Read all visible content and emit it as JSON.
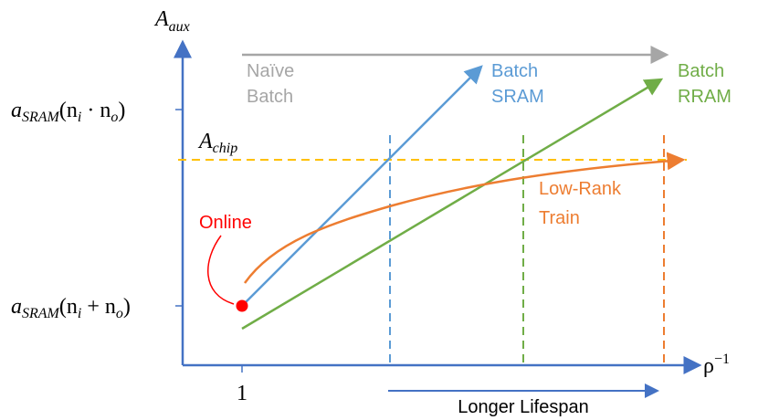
{
  "axes": {
    "y_label": {
      "parts": [
        "A",
        "aux"
      ]
    },
    "x_label": {
      "parts": [
        "ρ",
        "−1"
      ]
    },
    "x_tick": "1",
    "y_ticks": [
      {
        "parts": [
          "a",
          "SRAM",
          "(n",
          "i",
          " · n",
          "o",
          ")"
        ]
      },
      {
        "parts": [
          "a",
          "SRAM",
          "(n",
          "i",
          " + n",
          "o",
          ")"
        ]
      }
    ],
    "chip_label": {
      "parts": [
        "A",
        "chip"
      ]
    }
  },
  "curves": {
    "naive_batch": [
      "Naïve",
      "Batch"
    ],
    "batch_sram": [
      "Batch",
      "SRAM"
    ],
    "batch_rram": [
      "Batch",
      "RRAM"
    ],
    "low_rank": [
      "Low-Rank",
      "Train"
    ],
    "online": "Online"
  },
  "footer": "Longer Lifespan"
}
